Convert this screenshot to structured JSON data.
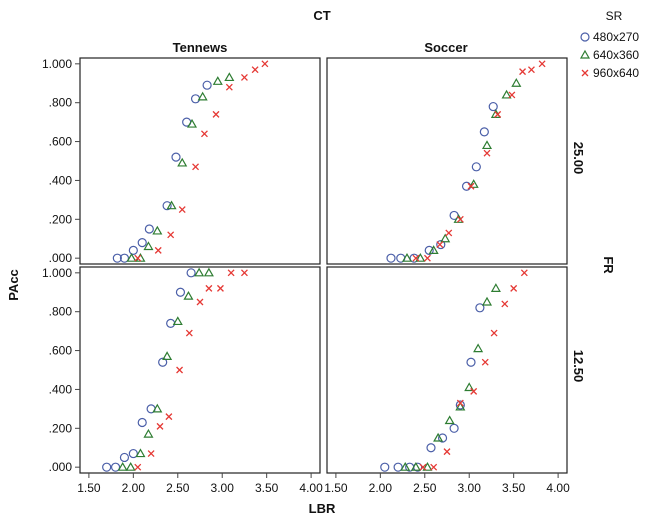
{
  "chart_data": {
    "type": "scatter",
    "facet": {
      "column_variable": "CT",
      "row_variable": "FR",
      "columns": [
        "Tennews",
        "Soccer"
      ],
      "rows": [
        "25.00",
        "12.50"
      ]
    },
    "xlabel": "LBR",
    "ylabel": "PAcc",
    "xlim": [
      1.4,
      4.1
    ],
    "ylim": [
      -0.03,
      1.03
    ],
    "x_ticks": [
      "1.50",
      "2.00",
      "2.50",
      "3.00",
      "3.50",
      "4.00"
    ],
    "y_ticks": [
      ".000",
      ".200",
      ".400",
      ".600",
      ".800",
      "1.000"
    ],
    "grid": false,
    "legend": {
      "title": "SR",
      "position": "top-right",
      "entries": [
        {
          "label": "480x270",
          "marker": "circle",
          "color": "#4b5fa8"
        },
        {
          "label": "640x360",
          "marker": "triangle",
          "color": "#2e7d32"
        },
        {
          "label": "960x640",
          "marker": "cross",
          "color": "#e53935"
        }
      ]
    },
    "panels": [
      {
        "column": "Tennews",
        "row": "25.00",
        "series": [
          {
            "name": "480x270",
            "points": [
              [
                1.82,
                0.0
              ],
              [
                1.9,
                0.0
              ],
              [
                2.0,
                0.04
              ],
              [
                2.1,
                0.08
              ],
              [
                2.18,
                0.15
              ],
              [
                2.38,
                0.27
              ],
              [
                2.48,
                0.52
              ],
              [
                2.6,
                0.7
              ],
              [
                2.7,
                0.82
              ],
              [
                2.83,
                0.89
              ]
            ]
          },
          {
            "name": "640x360",
            "points": [
              [
                1.98,
                0.0
              ],
              [
                2.08,
                0.0
              ],
              [
                2.17,
                0.06
              ],
              [
                2.27,
                0.14
              ],
              [
                2.43,
                0.27
              ],
              [
                2.55,
                0.49
              ],
              [
                2.66,
                0.69
              ],
              [
                2.78,
                0.83
              ],
              [
                2.95,
                0.91
              ],
              [
                3.08,
                0.93
              ]
            ]
          },
          {
            "name": "960x640",
            "points": [
              [
                2.05,
                0.0
              ],
              [
                2.28,
                0.04
              ],
              [
                2.42,
                0.12
              ],
              [
                2.55,
                0.25
              ],
              [
                2.7,
                0.47
              ],
              [
                2.8,
                0.64
              ],
              [
                2.93,
                0.74
              ],
              [
                3.08,
                0.88
              ],
              [
                3.25,
                0.93
              ],
              [
                3.37,
                0.97
              ],
              [
                3.48,
                1.0
              ]
            ]
          }
        ]
      },
      {
        "column": "Soccer",
        "row": "25.00",
        "series": [
          {
            "name": "480x270",
            "points": [
              [
                2.12,
                0.0
              ],
              [
                2.23,
                0.0
              ],
              [
                2.38,
                0.0
              ],
              [
                2.55,
                0.04
              ],
              [
                2.68,
                0.07
              ],
              [
                2.83,
                0.22
              ],
              [
                2.97,
                0.37
              ],
              [
                3.08,
                0.47
              ],
              [
                3.17,
                0.65
              ],
              [
                3.27,
                0.78
              ]
            ]
          },
          {
            "name": "640x360",
            "points": [
              [
                2.3,
                0.0
              ],
              [
                2.45,
                0.0
              ],
              [
                2.6,
                0.04
              ],
              [
                2.73,
                0.1
              ],
              [
                2.88,
                0.2
              ],
              [
                3.05,
                0.38
              ],
              [
                3.2,
                0.58
              ],
              [
                3.3,
                0.74
              ],
              [
                3.42,
                0.84
              ],
              [
                3.53,
                0.9
              ]
            ]
          },
          {
            "name": "960x640",
            "points": [
              [
                2.4,
                0.0
              ],
              [
                2.53,
                0.0
              ],
              [
                2.67,
                0.07
              ],
              [
                2.77,
                0.13
              ],
              [
                2.9,
                0.2
              ],
              [
                3.02,
                0.37
              ],
              [
                3.2,
                0.54
              ],
              [
                3.32,
                0.74
              ],
              [
                3.48,
                0.84
              ],
              [
                3.6,
                0.96
              ],
              [
                3.7,
                0.97
              ],
              [
                3.82,
                1.0
              ]
            ]
          }
        ]
      },
      {
        "column": "Tennews",
        "row": "12.50",
        "series": [
          {
            "name": "480x270",
            "points": [
              [
                1.7,
                0.0
              ],
              [
                1.8,
                0.0
              ],
              [
                1.9,
                0.05
              ],
              [
                2.0,
                0.07
              ],
              [
                2.1,
                0.23
              ],
              [
                2.2,
                0.3
              ],
              [
                2.33,
                0.54
              ],
              [
                2.42,
                0.74
              ],
              [
                2.53,
                0.9
              ],
              [
                2.65,
                1.0
              ]
            ]
          },
          {
            "name": "640x360",
            "points": [
              [
                1.88,
                0.0
              ],
              [
                1.97,
                0.0
              ],
              [
                2.08,
                0.07
              ],
              [
                2.17,
                0.17
              ],
              [
                2.27,
                0.3
              ],
              [
                2.38,
                0.57
              ],
              [
                2.5,
                0.75
              ],
              [
                2.62,
                0.88
              ],
              [
                2.74,
                1.0
              ],
              [
                2.85,
                1.0
              ]
            ]
          },
          {
            "name": "960x640",
            "points": [
              [
                2.05,
                0.0
              ],
              [
                2.2,
                0.07
              ],
              [
                2.3,
                0.21
              ],
              [
                2.4,
                0.26
              ],
              [
                2.52,
                0.5
              ],
              [
                2.63,
                0.69
              ],
              [
                2.75,
                0.85
              ],
              [
                2.85,
                0.92
              ],
              [
                2.98,
                0.92
              ],
              [
                3.1,
                1.0
              ],
              [
                3.25,
                1.0
              ]
            ]
          }
        ]
      },
      {
        "column": "Soccer",
        "row": "12.50",
        "series": [
          {
            "name": "480x270",
            "points": [
              [
                2.05,
                0.0
              ],
              [
                2.2,
                0.0
              ],
              [
                2.33,
                0.0
              ],
              [
                2.42,
                0.0
              ],
              [
                2.57,
                0.1
              ],
              [
                2.7,
                0.15
              ],
              [
                2.83,
                0.2
              ],
              [
                2.9,
                0.32
              ],
              [
                3.02,
                0.54
              ],
              [
                3.12,
                0.82
              ]
            ]
          },
          {
            "name": "640x360",
            "points": [
              [
                2.28,
                0.0
              ],
              [
                2.4,
                0.0
              ],
              [
                2.53,
                0.0
              ],
              [
                2.65,
                0.15
              ],
              [
                2.78,
                0.24
              ],
              [
                2.9,
                0.31
              ],
              [
                3.0,
                0.41
              ],
              [
                3.1,
                0.61
              ],
              [
                3.2,
                0.85
              ],
              [
                3.3,
                0.92
              ]
            ]
          },
          {
            "name": "960x640",
            "points": [
              [
                2.48,
                0.0
              ],
              [
                2.6,
                0.0
              ],
              [
                2.75,
                0.08
              ],
              [
                2.9,
                0.33
              ],
              [
                3.05,
                0.39
              ],
              [
                3.18,
                0.54
              ],
              [
                3.28,
                0.69
              ],
              [
                3.4,
                0.84
              ],
              [
                3.5,
                0.92
              ],
              [
                3.62,
                1.0
              ]
            ]
          }
        ]
      }
    ]
  }
}
